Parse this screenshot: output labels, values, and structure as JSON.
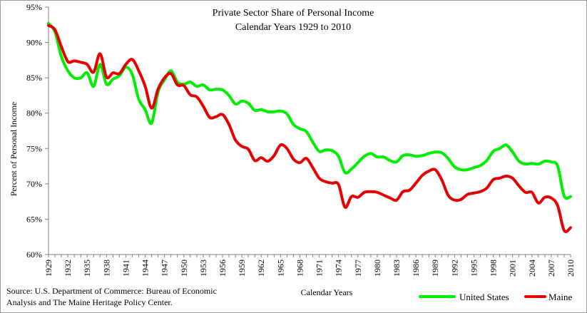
{
  "chart_data": {
    "type": "line",
    "title": [
      "Private Sector Share of Personal Income",
      "Calendar Years 1929 to 2010"
    ],
    "xlabel": "Calendar Years",
    "ylabel": "Percent of Personal Income",
    "xlim": [
      1929,
      2010
    ],
    "ylim": [
      60,
      95
    ],
    "y_ticks": [
      60,
      65,
      70,
      75,
      80,
      85,
      90,
      95
    ],
    "y_tick_labels": [
      "60%",
      "65%",
      "70%",
      "75%",
      "80%",
      "85%",
      "90%",
      "95%"
    ],
    "x_ticks": [
      1929,
      1932,
      1935,
      1938,
      1941,
      1944,
      1947,
      1950,
      1953,
      1956,
      1959,
      1962,
      1965,
      1968,
      1971,
      1974,
      1977,
      1980,
      1983,
      1986,
      1989,
      1992,
      1995,
      1998,
      2001,
      2004,
      2007,
      2010
    ],
    "x_tick_labels": [
      "1929",
      "1932",
      "1935",
      "1938",
      "1941",
      "1944",
      "1947",
      "1950",
      "1953",
      "1956",
      "1959",
      "1962",
      "1965",
      "1968",
      "1971",
      "1974",
      "1977",
      "1980",
      "1983",
      "1986",
      "1989",
      "1992",
      "1995",
      "1998",
      "2001",
      "2004",
      "2007",
      "2010"
    ],
    "grid": false,
    "legend_position": "bottom-right",
    "x": [
      1929,
      1930,
      1931,
      1932,
      1933,
      1934,
      1935,
      1936,
      1937,
      1938,
      1939,
      1940,
      1941,
      1942,
      1943,
      1944,
      1945,
      1946,
      1947,
      1948,
      1949,
      1950,
      1951,
      1952,
      1953,
      1954,
      1955,
      1956,
      1957,
      1958,
      1959,
      1960,
      1961,
      1962,
      1963,
      1964,
      1965,
      1966,
      1967,
      1968,
      1969,
      1970,
      1971,
      1972,
      1973,
      1974,
      1975,
      1976,
      1977,
      1978,
      1979,
      1980,
      1981,
      1982,
      1983,
      1984,
      1985,
      1986,
      1987,
      1988,
      1989,
      1990,
      1991,
      1992,
      1993,
      1994,
      1995,
      1996,
      1997,
      1998,
      1999,
      2000,
      2001,
      2002,
      2003,
      2004,
      2005,
      2006,
      2007,
      2008,
      2009,
      2010
    ],
    "series": [
      {
        "name": "United States",
        "color": "#00ee00",
        "values": [
          92.7,
          91.5,
          88.0,
          86.0,
          85.0,
          85.0,
          85.7,
          83.8,
          86.9,
          84.1,
          84.8,
          85.3,
          86.5,
          85.5,
          82.0,
          80.5,
          78.6,
          83.0,
          84.7,
          86.0,
          84.4,
          84.1,
          84.4,
          83.8,
          84.0,
          83.3,
          83.4,
          83.3,
          82.5,
          81.3,
          81.7,
          81.4,
          80.4,
          80.5,
          80.2,
          80.2,
          80.3,
          79.9,
          78.4,
          77.8,
          77.4,
          75.9,
          74.6,
          74.8,
          74.7,
          73.9,
          71.6,
          72.1,
          73.0,
          73.9,
          74.3,
          73.8,
          73.8,
          73.3,
          73.1,
          74.0,
          74.1,
          73.9,
          74.0,
          74.3,
          74.5,
          74.4,
          73.6,
          72.4,
          72.0,
          72.0,
          72.3,
          72.6,
          73.3,
          74.6,
          75.0,
          75.5,
          74.5,
          73.2,
          72.8,
          72.9,
          72.8,
          73.2,
          73.1,
          72.5,
          68.3,
          68.2
        ]
      },
      {
        "name": "Maine",
        "color": "#e60000",
        "values": [
          92.4,
          91.8,
          89.4,
          87.3,
          87.4,
          87.2,
          86.9,
          85.8,
          88.4,
          85.1,
          85.7,
          85.6,
          86.9,
          87.6,
          86.0,
          83.8,
          80.7,
          83.4,
          85.0,
          85.6,
          84.0,
          83.9,
          82.6,
          82.3,
          81.0,
          79.4,
          79.5,
          79.8,
          78.4,
          76.2,
          75.3,
          74.9,
          73.3,
          73.7,
          73.2,
          74.0,
          75.5,
          75.0,
          73.5,
          73.0,
          73.6,
          72.3,
          70.8,
          70.3,
          70.1,
          69.9,
          66.7,
          68.2,
          68.1,
          68.8,
          68.9,
          68.8,
          68.4,
          68.0,
          67.7,
          68.9,
          69.1,
          70.1,
          71.2,
          71.8,
          72.0,
          70.6,
          68.4,
          67.7,
          67.8,
          68.5,
          68.7,
          68.9,
          69.4,
          70.6,
          70.8,
          71.1,
          70.8,
          69.7,
          68.8,
          68.8,
          67.3,
          68.1,
          68.0,
          66.9,
          63.4,
          63.8
        ]
      }
    ],
    "source_lines": [
      "Source: U.S. Department of Commerce: Bureau of Economic",
      "Analysis and The Maine Heritage Policy  Center."
    ]
  }
}
